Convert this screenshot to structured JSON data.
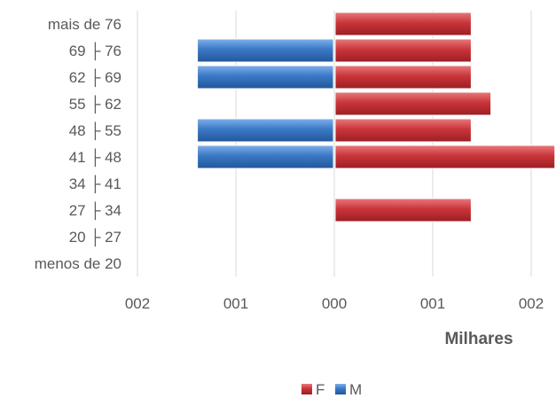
{
  "chart_data": {
    "type": "bar",
    "orientation": "horizontal",
    "title": "",
    "xlabel": "Milhares",
    "ylabel": "",
    "categories": [
      "menos de 20",
      "20 ├ 27",
      "27 ├ 34",
      "34 ├ 41",
      "41 ├ 48",
      "48 ├ 55",
      "55 ├ 62",
      "62 ├ 69",
      "69 ├ 76",
      "mais de 76"
    ],
    "xticks": [
      "002",
      "001",
      "000",
      "001",
      "002"
    ],
    "xlim": [
      -2,
      2.25
    ],
    "grid": true,
    "legend_position": "bottom",
    "series": [
      {
        "name": "F",
        "color": "#c0383c",
        "values": [
          0,
          0,
          1.4,
          0,
          2.25,
          1.4,
          1.6,
          1.4,
          1.4,
          1.4
        ]
      },
      {
        "name": "M",
        "color": "#3d7cc9",
        "values": [
          0,
          0,
          0,
          0,
          -1.4,
          -1.4,
          0,
          -1.4,
          -1.4,
          0
        ]
      }
    ]
  }
}
